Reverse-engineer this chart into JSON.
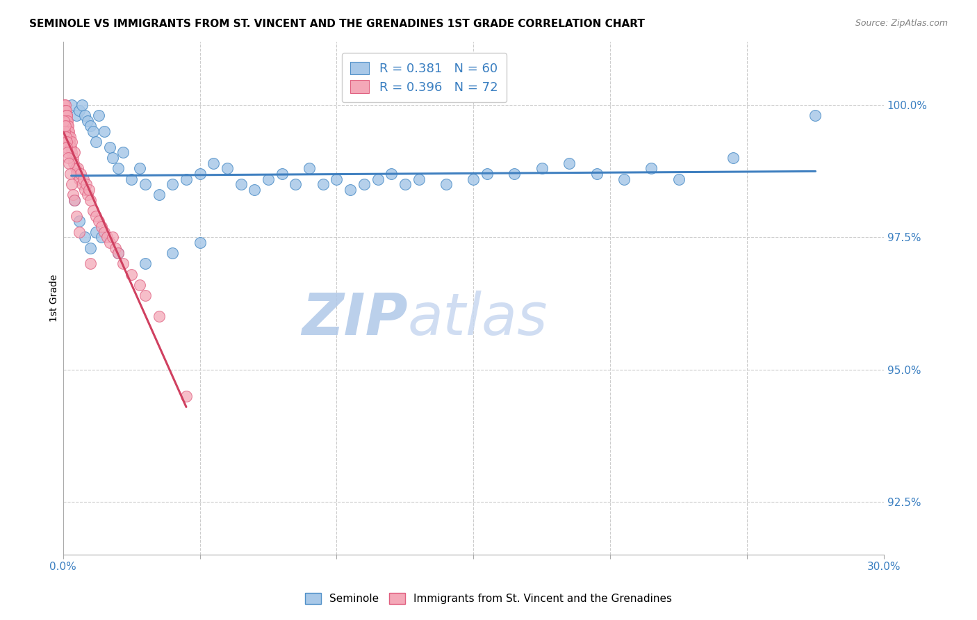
{
  "title": "SEMINOLE VS IMMIGRANTS FROM ST. VINCENT AND THE GRENADINES 1ST GRADE CORRELATION CHART",
  "source": "Source: ZipAtlas.com",
  "ylabel": "1st Grade",
  "y_tick_labels": [
    "92.5%",
    "95.0%",
    "97.5%",
    "100.0%"
  ],
  "y_tick_values": [
    92.5,
    95.0,
    97.5,
    100.0
  ],
  "xlim": [
    0.0,
    30.0
  ],
  "ylim": [
    91.5,
    101.2
  ],
  "legend_blue_label": "Seminole",
  "legend_pink_label": "Immigrants from St. Vincent and the Grenadines",
  "R_blue": 0.381,
  "N_blue": 60,
  "R_pink": 0.396,
  "N_pink": 72,
  "blue_color": "#A8C8E8",
  "pink_color": "#F4A8B8",
  "blue_edge_color": "#5090C8",
  "pink_edge_color": "#E06080",
  "blue_line_color": "#4080C0",
  "pink_line_color": "#D04060",
  "watermark_zip": "ZIP",
  "watermark_atlas": "atlas",
  "watermark_color": "#D0DFF0",
  "blue_scatter_x": [
    0.3,
    0.5,
    0.6,
    0.7,
    0.8,
    0.9,
    1.0,
    1.1,
    1.2,
    1.3,
    1.5,
    1.7,
    1.8,
    2.0,
    2.2,
    2.5,
    2.8,
    3.0,
    3.5,
    4.0,
    4.5,
    5.0,
    5.5,
    6.0,
    6.5,
    7.0,
    7.5,
    8.0,
    8.5,
    9.0,
    9.5,
    10.0,
    10.5,
    11.0,
    11.5,
    12.0,
    12.5,
    13.0,
    14.0,
    15.0,
    15.5,
    16.5,
    17.5,
    18.5,
    19.5,
    20.5,
    21.5,
    22.5,
    24.5,
    27.5,
    0.4,
    0.6,
    0.8,
    1.0,
    1.2,
    1.4,
    2.0,
    3.0,
    4.0,
    5.0
  ],
  "blue_scatter_y": [
    100.0,
    99.8,
    99.9,
    100.0,
    99.8,
    99.7,
    99.6,
    99.5,
    99.3,
    99.8,
    99.5,
    99.2,
    99.0,
    98.8,
    99.1,
    98.6,
    98.8,
    98.5,
    98.3,
    98.5,
    98.6,
    98.7,
    98.9,
    98.8,
    98.5,
    98.4,
    98.6,
    98.7,
    98.5,
    98.8,
    98.5,
    98.6,
    98.4,
    98.5,
    98.6,
    98.7,
    98.5,
    98.6,
    98.5,
    98.6,
    98.7,
    98.7,
    98.8,
    98.9,
    98.7,
    98.6,
    98.8,
    98.6,
    99.0,
    99.8,
    98.2,
    97.8,
    97.5,
    97.3,
    97.6,
    97.5,
    97.2,
    97.0,
    97.2,
    97.4
  ],
  "pink_scatter_x": [
    0.02,
    0.03,
    0.04,
    0.05,
    0.06,
    0.07,
    0.08,
    0.09,
    0.1,
    0.11,
    0.12,
    0.13,
    0.14,
    0.15,
    0.16,
    0.17,
    0.18,
    0.19,
    0.2,
    0.22,
    0.24,
    0.26,
    0.28,
    0.3,
    0.32,
    0.35,
    0.38,
    0.4,
    0.45,
    0.5,
    0.55,
    0.6,
    0.65,
    0.7,
    0.75,
    0.8,
    0.85,
    0.9,
    0.95,
    1.0,
    1.1,
    1.2,
    1.3,
    1.4,
    1.5,
    1.6,
    1.7,
    1.8,
    1.9,
    2.0,
    2.2,
    2.5,
    2.8,
    3.0,
    3.5,
    0.04,
    0.06,
    0.08,
    0.1,
    0.12,
    0.14,
    0.16,
    0.18,
    0.2,
    0.25,
    0.3,
    0.35,
    0.4,
    0.5,
    0.6,
    1.0,
    4.5
  ],
  "pink_scatter_y": [
    100.0,
    100.0,
    100.0,
    99.9,
    99.8,
    100.0,
    99.9,
    99.8,
    99.7,
    99.9,
    99.8,
    99.7,
    99.8,
    99.6,
    99.7,
    99.6,
    99.5,
    99.6,
    99.5,
    99.4,
    99.3,
    99.4,
    99.2,
    99.3,
    99.1,
    99.0,
    98.9,
    99.1,
    98.8,
    98.7,
    98.8,
    98.6,
    98.7,
    98.5,
    98.6,
    98.4,
    98.5,
    98.3,
    98.4,
    98.2,
    98.0,
    97.9,
    97.8,
    97.7,
    97.6,
    97.5,
    97.4,
    97.5,
    97.3,
    97.2,
    97.0,
    96.8,
    96.6,
    96.4,
    96.0,
    99.7,
    99.5,
    99.6,
    99.4,
    99.3,
    99.2,
    99.1,
    99.0,
    98.9,
    98.7,
    98.5,
    98.3,
    98.2,
    97.9,
    97.6,
    97.0,
    94.5
  ]
}
